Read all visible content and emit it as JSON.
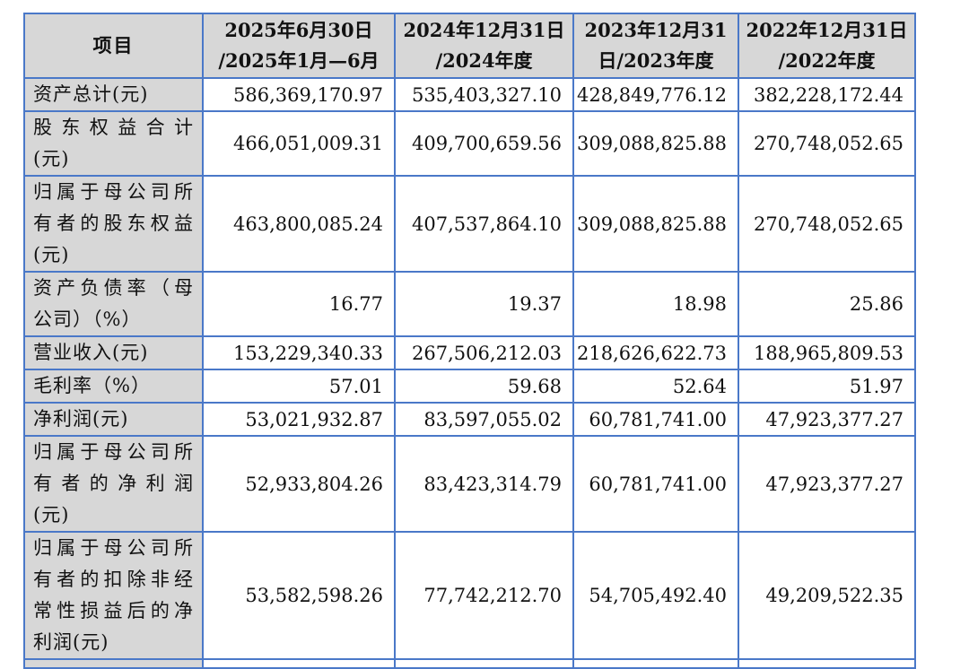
{
  "table": {
    "header": {
      "item": "项目",
      "col1": [
        "2025年6月30日",
        "/2025年1月—6月"
      ],
      "col2": [
        "2024年12月31日",
        "/2024年度"
      ],
      "col3": [
        "2023年12月31",
        "日/2023年度"
      ],
      "col4": [
        "2022年12月31日",
        "/2022年度"
      ]
    },
    "rows": [
      {
        "label": [
          "资产总计(元)"
        ],
        "values": [
          "586,369,170.97",
          "535,403,327.10",
          "428,849,776.12",
          "382,228,172.44"
        ]
      },
      {
        "label": [
          "股东权益合计",
          "(元)"
        ],
        "values": [
          "466,051,009.31",
          "409,700,659.56",
          "309,088,825.88",
          "270,748,052.65"
        ]
      },
      {
        "label": [
          "归属于母公司所",
          "有者的股东权益",
          "(元)"
        ],
        "values": [
          "463,800,085.24",
          "407,537,864.10",
          "309,088,825.88",
          "270,748,052.65"
        ]
      },
      {
        "label": [
          "资产负债率（母",
          "公司）（%）"
        ],
        "values": [
          "16.77",
          "19.37",
          "18.98",
          "25.86"
        ]
      },
      {
        "label": [
          "营业收入(元)"
        ],
        "values": [
          "153,229,340.33",
          "267,506,212.03",
          "218,626,622.73",
          "188,965,809.53"
        ]
      },
      {
        "label": [
          "毛利率（%）"
        ],
        "values": [
          "57.01",
          "59.68",
          "52.64",
          "51.97"
        ]
      },
      {
        "label": [
          "净利润(元)"
        ],
        "values": [
          "53,021,932.87",
          "83,597,055.02",
          "60,781,741.00",
          "47,923,377.27"
        ]
      },
      {
        "label": [
          "归属于母公司所",
          "有者的净利润",
          "(元)"
        ],
        "values": [
          "52,933,804.26",
          "83,423,314.79",
          "60,781,741.00",
          "47,923,377.27"
        ]
      },
      {
        "label": [
          "归属于母公司所",
          "有者的扣除非经",
          "常性损益后的净",
          "利润(元)"
        ],
        "values": [
          "53,582,598.26",
          "77,742,212.70",
          "54,705,492.40",
          "49,209,522.35"
        ]
      }
    ]
  },
  "colors": {
    "border": "#4a78c8",
    "header_bg": "#d7d7d7"
  }
}
